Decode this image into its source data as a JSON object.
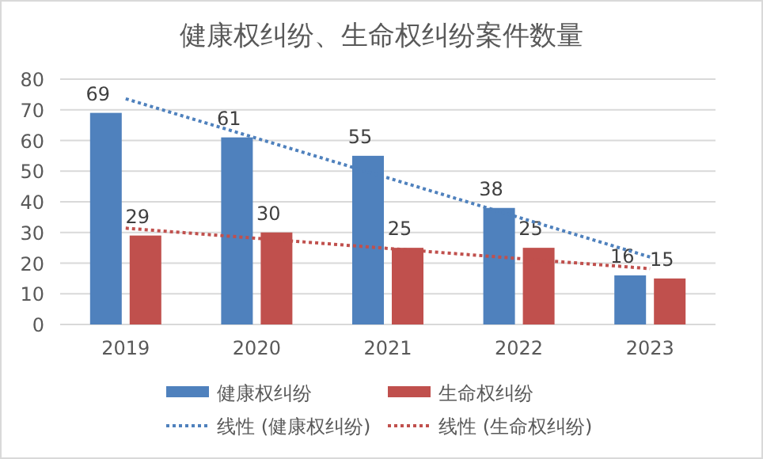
{
  "chart_data": {
    "type": "bar",
    "title": "健康权纠纷、生命权纠纷案件数量",
    "categories": [
      "2019",
      "2020",
      "2021",
      "2022",
      "2023"
    ],
    "series": [
      {
        "name": "健康权纠纷",
        "color": "#4f81bd",
        "values": [
          69,
          61,
          55,
          38,
          16
        ],
        "value_labels": [
          "69",
          "61",
          "55",
          "38",
          "16"
        ]
      },
      {
        "name": "生命权纠纷",
        "color": "#c0504d",
        "values": [
          29,
          30,
          25,
          25,
          15
        ],
        "value_labels": [
          "29",
          "30",
          "25",
          "25",
          "15"
        ]
      },
      {
        "name": "线性 (健康权纠纷)",
        "type": "line",
        "line_style": "dotted",
        "color": "#4f81bd",
        "values": [
          73.6,
          60.7,
          47.8,
          34.9,
          22
        ]
      },
      {
        "name": "线性 (生命权纠纷)",
        "type": "line",
        "line_style": "dotted",
        "color": "#c0504d",
        "values": [
          31.4,
          28.1,
          24.8,
          21.5,
          18.2
        ]
      }
    ],
    "ylim": [
      0,
      80
    ],
    "yticks": [
      0,
      10,
      20,
      30,
      40,
      50,
      60,
      70,
      80
    ],
    "grid": "y",
    "legend": "bottom"
  }
}
